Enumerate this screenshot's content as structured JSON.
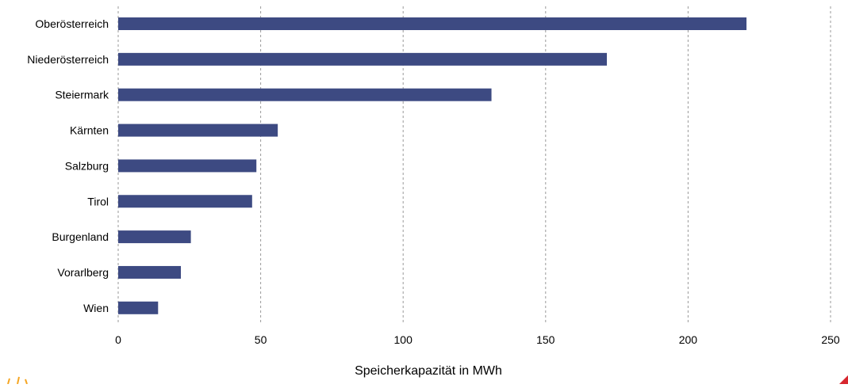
{
  "chart_data": {
    "type": "bar",
    "orientation": "horizontal",
    "categories": [
      "Oberösterreich",
      "Niederösterreich",
      "Steiermark",
      "Kärnten",
      "Salzburg",
      "Tirol",
      "Burgenland",
      "Vorarlberg",
      "Wien"
    ],
    "values": [
      220.5,
      171.5,
      131,
      56,
      48.5,
      47,
      25.5,
      22,
      14
    ],
    "xlabel": "Speicherkapazität in MWh",
    "ylabel": "",
    "xlim": [
      0,
      250
    ],
    "xticks": [
      0,
      50,
      100,
      150,
      200,
      250
    ],
    "grid": "vertical-dashed",
    "bar_color": "#3d4a82"
  },
  "decor": {
    "logo_left_color": "#f5a623",
    "logo_right_color": "#d7262e"
  }
}
